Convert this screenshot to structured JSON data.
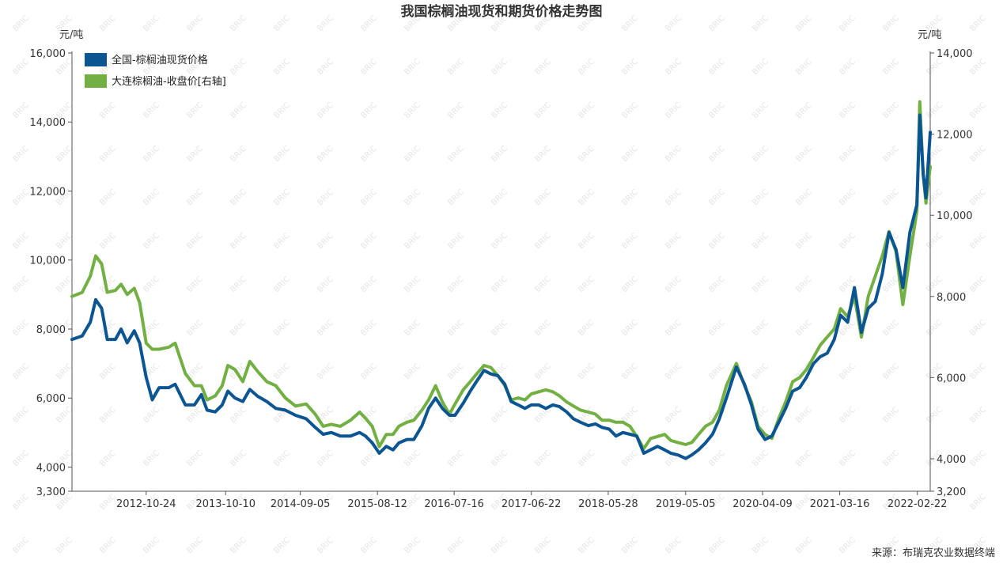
{
  "chart_data": {
    "type": "line",
    "title": "我国棕榈油现货和期货价格走势图",
    "y_left_unit": "元/吨",
    "y_right_unit": "元/吨",
    "y_left": {
      "min": 3300,
      "max": 16000,
      "ticks": [
        3300,
        4000,
        6000,
        8000,
        10000,
        12000,
        14000,
        16000
      ]
    },
    "y_right": {
      "min": 3200,
      "max": 14000,
      "ticks": [
        3200,
        4000,
        6000,
        8000,
        10000,
        12000,
        14000
      ]
    },
    "x_range": [
      "2011-12-01",
      "2022-04-20"
    ],
    "x_ticks": [
      "2012-10-24",
      "2013-10-10",
      "2014-09-05",
      "2015-08-12",
      "2016-07-16",
      "2017-06-22",
      "2018-05-28",
      "2019-05-05",
      "2020-04-09",
      "2021-03-16",
      "2022-02-22"
    ],
    "legend_position": "top-left",
    "grid": false,
    "series": [
      {
        "name": "全国-棕榈油现货价格",
        "axis": "left",
        "color": "#0a5592",
        "points": [
          [
            "2011-12-01",
            7700
          ],
          [
            "2012-01-15",
            7800
          ],
          [
            "2012-02-20",
            8200
          ],
          [
            "2012-03-15",
            8850
          ],
          [
            "2012-04-10",
            8600
          ],
          [
            "2012-05-05",
            7700
          ],
          [
            "2012-06-10",
            7700
          ],
          [
            "2012-07-05",
            8000
          ],
          [
            "2012-08-01",
            7600
          ],
          [
            "2012-09-01",
            7950
          ],
          [
            "2012-09-25",
            7600
          ],
          [
            "2012-10-24",
            6600
          ],
          [
            "2012-11-20",
            5950
          ],
          [
            "2012-12-20",
            6300
          ],
          [
            "2013-02-01",
            6300
          ],
          [
            "2013-03-01",
            6400
          ],
          [
            "2013-04-15",
            5800
          ],
          [
            "2013-05-25",
            5800
          ],
          [
            "2013-06-25",
            6100
          ],
          [
            "2013-07-20",
            5650
          ],
          [
            "2013-08-25",
            5600
          ],
          [
            "2013-09-25",
            5800
          ],
          [
            "2013-10-20",
            6200
          ],
          [
            "2013-11-20",
            6000
          ],
          [
            "2013-12-25",
            5900
          ],
          [
            "2014-01-25",
            6250
          ],
          [
            "2014-03-01",
            6050
          ],
          [
            "2014-04-10",
            5900
          ],
          [
            "2014-05-20",
            5700
          ],
          [
            "2014-07-01",
            5650
          ],
          [
            "2014-08-15",
            5500
          ],
          [
            "2014-10-01",
            5400
          ],
          [
            "2014-11-10",
            5150
          ],
          [
            "2014-12-15",
            4950
          ],
          [
            "2015-01-20",
            5000
          ],
          [
            "2015-03-01",
            4900
          ],
          [
            "2015-04-15",
            4900
          ],
          [
            "2015-05-25",
            5000
          ],
          [
            "2015-06-20",
            4900
          ],
          [
            "2015-07-20",
            4700
          ],
          [
            "2015-08-20",
            4400
          ],
          [
            "2015-09-20",
            4600
          ],
          [
            "2015-10-20",
            4500
          ],
          [
            "2015-11-15",
            4700
          ],
          [
            "2015-12-20",
            4800
          ],
          [
            "2016-01-20",
            4800
          ],
          [
            "2016-02-25",
            5200
          ],
          [
            "2016-03-25",
            5700
          ],
          [
            "2016-04-25",
            6000
          ],
          [
            "2016-05-25",
            5700
          ],
          [
            "2016-06-25",
            5500
          ],
          [
            "2016-07-20",
            5500
          ],
          [
            "2016-08-25",
            5850
          ],
          [
            "2016-09-25",
            6200
          ],
          [
            "2016-10-25",
            6500
          ],
          [
            "2016-11-25",
            6800
          ],
          [
            "2016-12-25",
            6700
          ],
          [
            "2017-01-25",
            6650
          ],
          [
            "2017-02-25",
            6400
          ],
          [
            "2017-03-25",
            5900
          ],
          [
            "2017-04-25",
            5800
          ],
          [
            "2017-05-25",
            5700
          ],
          [
            "2017-06-22",
            5800
          ],
          [
            "2017-07-25",
            5800
          ],
          [
            "2017-08-25",
            5700
          ],
          [
            "2017-09-25",
            5800
          ],
          [
            "2017-10-25",
            5750
          ],
          [
            "2017-11-25",
            5600
          ],
          [
            "2017-12-25",
            5400
          ],
          [
            "2018-01-25",
            5300
          ],
          [
            "2018-03-01",
            5200
          ],
          [
            "2018-04-01",
            5250
          ],
          [
            "2018-05-01",
            5150
          ],
          [
            "2018-06-01",
            5100
          ],
          [
            "2018-07-01",
            4900
          ],
          [
            "2018-08-01",
            5000
          ],
          [
            "2018-09-01",
            4950
          ],
          [
            "2018-10-01",
            4900
          ],
          [
            "2018-11-01",
            4400
          ],
          [
            "2018-12-01",
            4500
          ],
          [
            "2019-01-01",
            4600
          ],
          [
            "2019-02-01",
            4500
          ],
          [
            "2019-03-01",
            4400
          ],
          [
            "2019-04-01",
            4350
          ],
          [
            "2019-05-05",
            4250
          ],
          [
            "2019-06-01",
            4350
          ],
          [
            "2019-07-01",
            4500
          ],
          [
            "2019-08-01",
            4700
          ],
          [
            "2019-09-01",
            4950
          ],
          [
            "2019-10-01",
            5400
          ],
          [
            "2019-11-01",
            6000
          ],
          [
            "2019-12-15",
            6900
          ],
          [
            "2020-01-20",
            6400
          ],
          [
            "2020-02-20",
            5800
          ],
          [
            "2020-03-20",
            5100
          ],
          [
            "2020-04-20",
            4800
          ],
          [
            "2020-05-20",
            4900
          ],
          [
            "2020-06-20",
            5300
          ],
          [
            "2020-07-20",
            5700
          ],
          [
            "2020-08-20",
            6200
          ],
          [
            "2020-09-20",
            6300
          ],
          [
            "2020-10-20",
            6600
          ],
          [
            "2020-11-20",
            7000
          ],
          [
            "2020-12-20",
            7200
          ],
          [
            "2021-01-20",
            7300
          ],
          [
            "2021-02-20",
            7700
          ],
          [
            "2021-03-20",
            8400
          ],
          [
            "2021-04-20",
            8200
          ],
          [
            "2021-05-20",
            9200
          ],
          [
            "2021-06-20",
            7900
          ],
          [
            "2021-07-20",
            8600
          ],
          [
            "2021-08-20",
            8800
          ],
          [
            "2021-09-20",
            9600
          ],
          [
            "2021-10-20",
            10800
          ],
          [
            "2021-11-20",
            10300
          ],
          [
            "2021-12-20",
            9200
          ],
          [
            "2022-01-20",
            10800
          ],
          [
            "2022-02-20",
            11600
          ],
          [
            "2022-03-05",
            14200
          ],
          [
            "2022-03-20",
            12500
          ],
          [
            "2022-04-01",
            11800
          ],
          [
            "2022-04-20",
            13700
          ]
        ]
      },
      {
        "name": "大连棕榈油-收盘价[右轴]",
        "axis": "right",
        "color": "#72b043",
        "points": [
          [
            "2011-12-01",
            8000
          ],
          [
            "2012-01-15",
            8100
          ],
          [
            "2012-02-20",
            8500
          ],
          [
            "2012-03-15",
            9000
          ],
          [
            "2012-04-10",
            8800
          ],
          [
            "2012-05-05",
            8100
          ],
          [
            "2012-06-10",
            8150
          ],
          [
            "2012-07-05",
            8300
          ],
          [
            "2012-08-01",
            8050
          ],
          [
            "2012-09-01",
            8200
          ],
          [
            "2012-09-25",
            7850
          ],
          [
            "2012-10-24",
            6850
          ],
          [
            "2012-11-20",
            6700
          ],
          [
            "2012-12-20",
            6700
          ],
          [
            "2013-02-01",
            6750
          ],
          [
            "2013-03-01",
            6850
          ],
          [
            "2013-04-15",
            6100
          ],
          [
            "2013-05-25",
            5800
          ],
          [
            "2013-06-25",
            5800
          ],
          [
            "2013-07-20",
            5450
          ],
          [
            "2013-08-25",
            5550
          ],
          [
            "2013-09-25",
            5800
          ],
          [
            "2013-10-20",
            6300
          ],
          [
            "2013-11-20",
            6200
          ],
          [
            "2013-12-25",
            5900
          ],
          [
            "2014-01-25",
            6400
          ],
          [
            "2014-03-01",
            6150
          ],
          [
            "2014-04-10",
            5900
          ],
          [
            "2014-05-20",
            5800
          ],
          [
            "2014-07-01",
            5500
          ],
          [
            "2014-08-15",
            5300
          ],
          [
            "2014-10-01",
            5350
          ],
          [
            "2014-11-10",
            5100
          ],
          [
            "2014-12-15",
            4800
          ],
          [
            "2015-01-20",
            4850
          ],
          [
            "2015-03-01",
            4800
          ],
          [
            "2015-04-15",
            4950
          ],
          [
            "2015-05-25",
            5150
          ],
          [
            "2015-06-20",
            5000
          ],
          [
            "2015-07-20",
            4800
          ],
          [
            "2015-08-20",
            4300
          ],
          [
            "2015-09-20",
            4600
          ],
          [
            "2015-10-20",
            4600
          ],
          [
            "2015-11-15",
            4800
          ],
          [
            "2015-12-20",
            4900
          ],
          [
            "2016-01-20",
            4950
          ],
          [
            "2016-02-25",
            5200
          ],
          [
            "2016-03-25",
            5450
          ],
          [
            "2016-04-25",
            5800
          ],
          [
            "2016-05-25",
            5400
          ],
          [
            "2016-06-25",
            5100
          ],
          [
            "2016-07-20",
            5350
          ],
          [
            "2016-08-25",
            5700
          ],
          [
            "2016-09-25",
            5900
          ],
          [
            "2016-10-25",
            6100
          ],
          [
            "2016-11-25",
            6300
          ],
          [
            "2016-12-25",
            6250
          ],
          [
            "2017-01-25",
            6050
          ],
          [
            "2017-02-25",
            5800
          ],
          [
            "2017-03-25",
            5450
          ],
          [
            "2017-04-25",
            5500
          ],
          [
            "2017-05-25",
            5450
          ],
          [
            "2017-06-22",
            5600
          ],
          [
            "2017-07-25",
            5650
          ],
          [
            "2017-08-25",
            5700
          ],
          [
            "2017-09-25",
            5650
          ],
          [
            "2017-10-25",
            5550
          ],
          [
            "2017-11-25",
            5400
          ],
          [
            "2017-12-25",
            5300
          ],
          [
            "2018-01-25",
            5200
          ],
          [
            "2018-03-01",
            5150
          ],
          [
            "2018-04-01",
            5100
          ],
          [
            "2018-05-01",
            4950
          ],
          [
            "2018-06-01",
            4950
          ],
          [
            "2018-07-01",
            4900
          ],
          [
            "2018-08-01",
            4900
          ],
          [
            "2018-09-01",
            4800
          ],
          [
            "2018-10-01",
            4550
          ],
          [
            "2018-11-01",
            4250
          ],
          [
            "2018-12-01",
            4500
          ],
          [
            "2019-01-01",
            4550
          ],
          [
            "2019-02-01",
            4600
          ],
          [
            "2019-03-01",
            4450
          ],
          [
            "2019-04-01",
            4400
          ],
          [
            "2019-05-05",
            4350
          ],
          [
            "2019-06-01",
            4400
          ],
          [
            "2019-07-01",
            4600
          ],
          [
            "2019-08-01",
            4800
          ],
          [
            "2019-09-01",
            4900
          ],
          [
            "2019-10-01",
            5200
          ],
          [
            "2019-11-01",
            5800
          ],
          [
            "2019-12-15",
            6350
          ],
          [
            "2020-01-20",
            5800
          ],
          [
            "2020-02-20",
            5400
          ],
          [
            "2020-03-20",
            4800
          ],
          [
            "2020-04-20",
            4600
          ],
          [
            "2020-05-20",
            4500
          ],
          [
            "2020-06-20",
            5000
          ],
          [
            "2020-07-20",
            5400
          ],
          [
            "2020-08-20",
            5900
          ],
          [
            "2020-09-20",
            6000
          ],
          [
            "2020-10-20",
            6200
          ],
          [
            "2020-11-20",
            6500
          ],
          [
            "2020-12-20",
            6800
          ],
          [
            "2021-01-20",
            7000
          ],
          [
            "2021-02-20",
            7200
          ],
          [
            "2021-03-20",
            7700
          ],
          [
            "2021-04-20",
            7500
          ],
          [
            "2021-05-20",
            8000
          ],
          [
            "2021-06-20",
            7000
          ],
          [
            "2021-07-20",
            8000
          ],
          [
            "2021-08-20",
            8500
          ],
          [
            "2021-09-20",
            9000
          ],
          [
            "2021-10-20",
            9600
          ],
          [
            "2021-11-20",
            9100
          ],
          [
            "2021-12-20",
            7800
          ],
          [
            "2022-01-20",
            9000
          ],
          [
            "2022-02-20",
            10100
          ],
          [
            "2022-03-05",
            12800
          ],
          [
            "2022-03-20",
            11000
          ],
          [
            "2022-04-01",
            10300
          ],
          [
            "2022-04-20",
            11200
          ]
        ]
      }
    ]
  },
  "source": "来源：布瑞克农业数据终端",
  "watermark": "BRIC",
  "colors": {
    "axis": "#555555",
    "text": "#333333",
    "watermark": "#cfcfcf"
  }
}
